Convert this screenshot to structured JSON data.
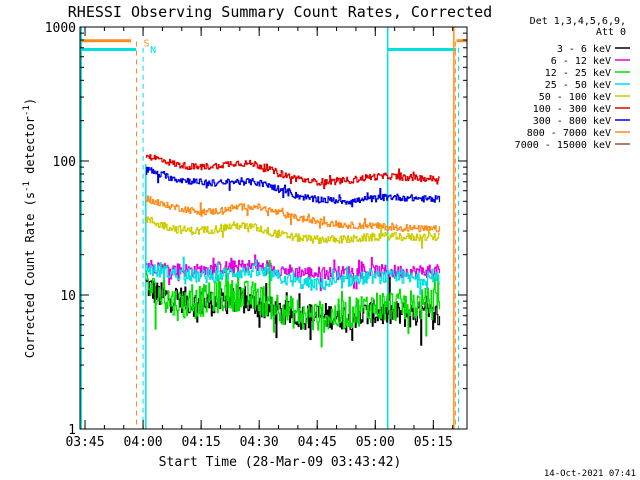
{
  "chart_data": {
    "type": "line",
    "title": "RHESSI Observing Summary Count Rates, Corrected",
    "xlabel": "Start Time (28-Mar-09 03:43:42)",
    "ylabel": "Corrected Count Rate (s",
    "ylabel_sup1": "-1",
    "ylabel_mid": " detector",
    "ylabel_sup2": "-1",
    "ylabel_end": ")",
    "x_unit": "minutes after 03:43:42",
    "xlim": [
      0,
      100
    ],
    "x_ticks": [
      {
        "label": "03:45",
        "value": 1.3
      },
      {
        "label": "04:00",
        "value": 16.3
      },
      {
        "label": "04:15",
        "value": 31.3
      },
      {
        "label": "04:30",
        "value": 46.3
      },
      {
        "label": "04:45",
        "value": 61.3
      },
      {
        "label": "05:00",
        "value": 76.3
      },
      {
        "label": "05:15",
        "value": 91.3
      }
    ],
    "y_scale": "log",
    "ylim": [
      1,
      1000
    ],
    "y_ticks": [
      {
        "label": "1",
        "value": 1
      },
      {
        "label": "10",
        "value": 10
      },
      {
        "label": "100",
        "value": 100
      },
      {
        "label": "1000",
        "value": 1000
      }
    ],
    "legend_header": [
      "Det 1,3,4,5,6,9,",
      "Att 0"
    ],
    "legend_position": "right",
    "series": [
      {
        "name": "3 - 6 keV",
        "color": "#000000",
        "noise": 0.1,
        "points": [
          [
            17.0,
            12
          ],
          [
            20,
            10
          ],
          [
            25,
            9.5
          ],
          [
            30,
            8.6
          ],
          [
            35,
            8.8
          ],
          [
            40,
            9.2
          ],
          [
            45,
            8.6
          ],
          [
            50,
            7.6
          ],
          [
            55,
            7.0
          ],
          [
            60,
            6.9
          ],
          [
            65,
            7.0
          ],
          [
            70,
            6.9
          ],
          [
            75,
            7.3
          ],
          [
            80,
            7.3
          ],
          [
            85,
            7.1
          ],
          [
            90,
            7.2
          ],
          [
            93,
            7.0
          ]
        ]
      },
      {
        "name": "6 - 12 keV",
        "color": "#e200e2",
        "noise": 0.05,
        "points": [
          [
            17.0,
            17
          ],
          [
            20,
            16
          ],
          [
            25,
            15.5
          ],
          [
            30,
            15.2
          ],
          [
            35,
            15.8
          ],
          [
            40,
            16.2
          ],
          [
            45,
            16.5
          ],
          [
            50,
            15.6
          ],
          [
            55,
            15.0
          ],
          [
            60,
            14.5
          ],
          [
            65,
            14.5
          ],
          [
            70,
            14.8
          ],
          [
            75,
            15.0
          ],
          [
            80,
            15.0
          ],
          [
            85,
            14.9
          ],
          [
            90,
            15.1
          ],
          [
            93,
            15.0
          ]
        ]
      },
      {
        "name": "12 - 25 keV",
        "color": "#00e000",
        "noise": 0.12,
        "points": [
          [
            17.0,
            12
          ],
          [
            20,
            10
          ],
          [
            25,
            8.5
          ],
          [
            30,
            8.8
          ],
          [
            35,
            9.6
          ],
          [
            40,
            10.0
          ],
          [
            45,
            9.6
          ],
          [
            50,
            8.4
          ],
          [
            55,
            7.4
          ],
          [
            60,
            6.9
          ],
          [
            65,
            6.9
          ],
          [
            70,
            7.4
          ],
          [
            75,
            8.2
          ],
          [
            80,
            8.4
          ],
          [
            85,
            8.4
          ],
          [
            90,
            8.6
          ],
          [
            93,
            8.6
          ]
        ]
      },
      {
        "name": "25 - 50 keV",
        "color": "#00e0e0",
        "noise": 0.05,
        "points": [
          [
            17.0,
            16
          ],
          [
            20,
            15
          ],
          [
            25,
            14.5
          ],
          [
            30,
            13.8
          ],
          [
            35,
            13.8
          ],
          [
            40,
            14.8
          ],
          [
            45,
            15.0
          ],
          [
            50,
            14.0
          ],
          [
            55,
            12.6
          ],
          [
            60,
            12.0
          ],
          [
            65,
            12.2
          ],
          [
            70,
            13.0
          ],
          [
            75,
            13.6
          ],
          [
            80,
            13.6
          ],
          [
            85,
            13.3
          ],
          [
            90,
            13.3
          ],
          [
            93,
            13.2
          ]
        ]
      },
      {
        "name": "50 - 100 keV",
        "color": "#cccc00",
        "noise": 0.03,
        "points": [
          [
            17.0,
            37
          ],
          [
            20,
            34
          ],
          [
            25,
            31
          ],
          [
            30,
            30
          ],
          [
            35,
            31
          ],
          [
            40,
            33
          ],
          [
            45,
            32
          ],
          [
            50,
            29
          ],
          [
            55,
            27
          ],
          [
            60,
            26
          ],
          [
            65,
            26
          ],
          [
            70,
            26
          ],
          [
            75,
            27
          ],
          [
            80,
            27.5
          ],
          [
            85,
            27
          ],
          [
            90,
            27
          ],
          [
            93,
            27
          ]
        ]
      },
      {
        "name": "100 - 300 keV",
        "color": "#e20000",
        "noise": 0.025,
        "points": [
          [
            17.0,
            110
          ],
          [
            20,
            104
          ],
          [
            25,
            94
          ],
          [
            30,
            90
          ],
          [
            35,
            92
          ],
          [
            40,
            97
          ],
          [
            45,
            95
          ],
          [
            50,
            84
          ],
          [
            55,
            75
          ],
          [
            60,
            70
          ],
          [
            65,
            70
          ],
          [
            70,
            72
          ],
          [
            75,
            76
          ],
          [
            80,
            77
          ],
          [
            85,
            75
          ],
          [
            90,
            74
          ],
          [
            93,
            73
          ]
        ]
      },
      {
        "name": "300 - 800 keV",
        "color": "#0000e2",
        "noise": 0.025,
        "points": [
          [
            17.0,
            88
          ],
          [
            20,
            80
          ],
          [
            25,
            73
          ],
          [
            30,
            70
          ],
          [
            35,
            68
          ],
          [
            40,
            70
          ],
          [
            45,
            70
          ],
          [
            50,
            64
          ],
          [
            55,
            56
          ],
          [
            60,
            52
          ],
          [
            65,
            51
          ],
          [
            70,
            50
          ],
          [
            75,
            52
          ],
          [
            80,
            54
          ],
          [
            85,
            53
          ],
          [
            90,
            52
          ],
          [
            93,
            52
          ]
        ]
      },
      {
        "name": "800 - 7000 keV",
        "color": "#ff8c1a",
        "noise": 0.025,
        "points": [
          [
            17.0,
            53
          ],
          [
            20,
            48
          ],
          [
            25,
            45
          ],
          [
            30,
            42
          ],
          [
            35,
            42
          ],
          [
            40,
            45
          ],
          [
            45,
            46
          ],
          [
            50,
            42
          ],
          [
            55,
            38
          ],
          [
            60,
            36
          ],
          [
            65,
            34
          ],
          [
            70,
            33
          ],
          [
            75,
            33
          ],
          [
            80,
            32
          ],
          [
            85,
            31.5
          ],
          [
            90,
            31
          ],
          [
            93,
            31
          ]
        ]
      },
      {
        "name": "7000 - 15000 keV",
        "color": "#a0522d",
        "noise": 0.02,
        "points": []
      }
    ],
    "markers": [
      {
        "label": "S",
        "color": "#ff8c1a",
        "style": "dashed",
        "x": 14.6,
        "top_value": 780
      },
      {
        "label": "",
        "color": "#ff8c1a",
        "style": "dashed",
        "x": 97.0,
        "top_value": 780
      },
      {
        "label": "N",
        "color": "#00e0e0",
        "style": "dashed",
        "x": 16.3,
        "top_value": 700
      },
      {
        "label": "",
        "color": "#00e0e0",
        "style": "dashed",
        "x": 97.8,
        "top_value": 700
      }
    ],
    "bars": [
      {
        "color": "#ff8c1a",
        "segments": [
          [
            0,
            13.2,
            790
          ],
          [
            97.3,
            100,
            790
          ]
        ]
      },
      {
        "color": "#00e0e0",
        "segments": [
          [
            0,
            14.5,
            680
          ],
          [
            79.5,
            97.2,
            680
          ]
        ]
      }
    ],
    "solid_vlines": [
      {
        "color": "#00e0e0",
        "x": 0.3
      },
      {
        "color": "#00e0e0",
        "x": 79.5
      },
      {
        "color": "#ff8c1a",
        "x": 96.6
      },
      {
        "color": "#00e0e0",
        "x": 17.0,
        "from": 1,
        "to": 95
      }
    ]
  },
  "footer": {
    "date": "14-Oct-2021 07:41"
  }
}
